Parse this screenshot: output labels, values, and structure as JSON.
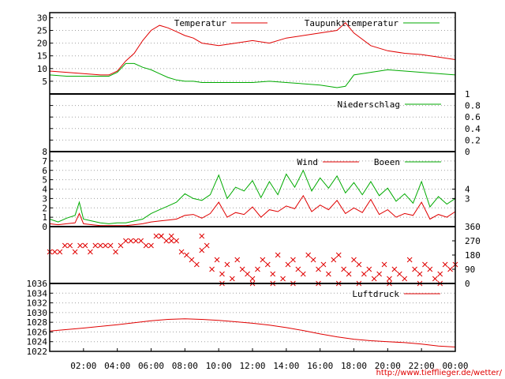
{
  "credit": "http://www.tiefflieger.de/wetter/",
  "colors": {
    "red": "#e00000",
    "green": "#00aa00",
    "grid": "#a0a0a0"
  },
  "x_axis": {
    "ticks": [
      2,
      4,
      6,
      8,
      10,
      12,
      14,
      16,
      18,
      20,
      22,
      24
    ],
    "tick_labels": [
      "02:00",
      "04:00",
      "06:00",
      "08:00",
      "10:00",
      "12:00",
      "14:00",
      "16:00",
      "18:00",
      "20:00",
      "22:00",
      "00:00"
    ],
    "range_hours": [
      0,
      24
    ]
  },
  "chart_data": [
    {
      "type": "line",
      "panel": "temperature",
      "ylim": [
        0,
        32
      ],
      "yticks": [
        5,
        10,
        15,
        20,
        25,
        30
      ],
      "ytick_labels": [
        "5",
        "10",
        "15",
        "20",
        "25",
        "30"
      ],
      "x": [
        0,
        1,
        2,
        3,
        3.5,
        4,
        4.5,
        5,
        5.5,
        6,
        6.5,
        7,
        7.5,
        8,
        8.5,
        9,
        10,
        11,
        12,
        13,
        14,
        15,
        16,
        17,
        17.5,
        18,
        19,
        20,
        21,
        22,
        23,
        24
      ],
      "series": [
        {
          "name": "Temperatur",
          "color": "#e00000",
          "values": [
            9,
            8.5,
            8,
            7.5,
            7.5,
            9,
            13,
            16,
            21,
            25,
            27,
            26,
            24.5,
            23,
            22,
            20,
            19,
            20,
            21,
            20,
            22,
            23,
            24,
            25,
            28,
            24,
            19,
            17,
            16,
            15.5,
            14.5,
            13.5
          ]
        },
        {
          "name": "Taupunkttemperatur",
          "color": "#00aa00",
          "values": [
            7.5,
            7,
            7,
            7,
            7,
            8.5,
            12,
            12,
            10.5,
            9.5,
            8,
            6.5,
            5.5,
            5,
            5,
            4.5,
            4.5,
            4.5,
            4.5,
            5,
            4.5,
            4,
            3.5,
            2.5,
            3,
            7.5,
            8.5,
            9.5,
            9,
            8.5,
            8,
            7.5
          ]
        }
      ]
    },
    {
      "type": "line",
      "panel": "precipitation",
      "ylim": [
        0,
        1
      ],
      "yticks": [
        0,
        0.2,
        0.4,
        0.6,
        0.8,
        1
      ],
      "ytick_labels": [
        "0",
        "0.2",
        "0.4",
        "0.6",
        "0.8",
        "1"
      ],
      "x": [
        0,
        24
      ],
      "series": [
        {
          "name": "Niederschlag",
          "color": "#00aa00",
          "values": [
            0,
            0
          ]
        }
      ]
    },
    {
      "type": "line",
      "panel": "wind",
      "ylim": [
        0,
        8
      ],
      "yticks": [
        0,
        1,
        2,
        3,
        4,
        5,
        6,
        7,
        8
      ],
      "ytick_labels": [
        "0",
        "1",
        "2",
        "3",
        "4",
        "5",
        "6",
        "7",
        "8"
      ],
      "y2ticks": [
        3,
        4
      ],
      "y2tick_labels": [
        "3",
        "4"
      ],
      "x": [
        0,
        0.5,
        1,
        1.5,
        1.75,
        2,
        2.5,
        3,
        3.5,
        4,
        4.5,
        5,
        5.5,
        6,
        6.5,
        7,
        7.5,
        8,
        8.5,
        9,
        9.5,
        10,
        10.5,
        11,
        11.5,
        12,
        12.5,
        13,
        13.5,
        14,
        14.5,
        15,
        15.5,
        16,
        16.5,
        17,
        17.5,
        18,
        18.5,
        19,
        19.5,
        20,
        20.5,
        21,
        21.5,
        22,
        22.5,
        23,
        23.5,
        24
      ],
      "series": [
        {
          "name": "Wind",
          "color": "#e00000",
          "values": [
            0.3,
            0.2,
            0.3,
            0.4,
            1.4,
            0.3,
            0.2,
            0.1,
            0.1,
            0.1,
            0.1,
            0.2,
            0.3,
            0.5,
            0.6,
            0.7,
            0.8,
            1.2,
            1.3,
            0.9,
            1.4,
            2.6,
            1.0,
            1.5,
            1.3,
            2.1,
            1.0,
            1.8,
            1.6,
            2.2,
            1.9,
            3.3,
            1.6,
            2.3,
            1.8,
            2.8,
            1.4,
            2.0,
            1.5,
            2.9,
            1.3,
            1.8,
            1.0,
            1.4,
            1.2,
            2.6,
            0.8,
            1.3,
            1.0,
            1.6
          ]
        },
        {
          "name": "Boeen",
          "color": "#00aa00",
          "values": [
            0.8,
            0.5,
            0.9,
            1.2,
            2.6,
            0.8,
            0.6,
            0.4,
            0.3,
            0.4,
            0.4,
            0.6,
            0.8,
            1.4,
            1.8,
            2.2,
            2.6,
            3.5,
            3.0,
            2.8,
            3.4,
            5.5,
            3.0,
            4.2,
            3.8,
            4.9,
            3.1,
            4.8,
            3.4,
            5.6,
            4.2,
            6.0,
            3.8,
            5.2,
            4.1,
            5.4,
            3.6,
            4.7,
            3.4,
            4.8,
            3.3,
            4.1,
            2.7,
            3.5,
            2.5,
            4.8,
            2.1,
            3.2,
            2.4,
            3.0
          ]
        }
      ]
    },
    {
      "type": "scatter",
      "panel": "wind-direction",
      "ylim": [
        0,
        360
      ],
      "y2ticks": [
        0,
        90,
        180,
        270,
        360
      ],
      "y2tick_labels": [
        "0",
        "90",
        "180",
        "270",
        "360"
      ],
      "series": [
        {
          "name": "",
          "color": "#e00000",
          "marker": "x",
          "x": [
            0,
            0.3,
            0.6,
            0.9,
            1.2,
            1.5,
            1.8,
            2.1,
            2.4,
            2.7,
            3.0,
            3.3,
            3.6,
            3.9,
            4.2,
            4.5,
            4.8,
            5.1,
            5.4,
            5.7,
            6.0,
            6.3,
            6.6,
            6.9,
            7.2,
            7.5,
            7.8,
            8.1,
            8.4,
            8.7,
            9.0,
            9.3,
            9.6,
            9.9,
            10.2,
            10.5,
            10.8,
            11.1,
            11.4,
            11.7,
            12.0,
            12.3,
            12.6,
            12.9,
            13.2,
            13.5,
            13.8,
            14.1,
            14.4,
            14.7,
            15.0,
            15.3,
            15.6,
            15.9,
            16.2,
            16.5,
            16.8,
            17.1,
            17.4,
            17.7,
            18.0,
            18.3,
            18.6,
            18.9,
            19.2,
            19.5,
            19.8,
            20.1,
            20.4,
            20.7,
            21.0,
            21.3,
            21.6,
            21.9,
            22.2,
            22.5,
            22.8,
            23.1,
            23.4,
            23.7,
            24.0,
            6.6,
            7.2,
            9.0,
            10.2,
            12.0,
            13.2,
            14.4,
            15.9,
            17.1,
            18.3,
            20.1,
            21.9,
            23.1
          ],
          "y": [
            200,
            200,
            200,
            240,
            240,
            200,
            240,
            240,
            200,
            240,
            240,
            240,
            240,
            200,
            240,
            270,
            270,
            270,
            270,
            240,
            240,
            300,
            300,
            270,
            300,
            270,
            200,
            180,
            150,
            120,
            210,
            240,
            90,
            150,
            60,
            120,
            30,
            150,
            90,
            60,
            30,
            90,
            150,
            120,
            60,
            180,
            30,
            120,
            150,
            90,
            60,
            180,
            150,
            90,
            120,
            60,
            150,
            180,
            90,
            60,
            150,
            120,
            60,
            90,
            30,
            60,
            120,
            30,
            90,
            60,
            30,
            150,
            90,
            60,
            120,
            90,
            30,
            60,
            120,
            90,
            120,
            300,
            270,
            300,
            0,
            0,
            0,
            0,
            0,
            0,
            0,
            0,
            0,
            0
          ]
        }
      ]
    },
    {
      "type": "line",
      "panel": "pressure",
      "ylim": [
        1022,
        1036
      ],
      "yticks": [
        1022,
        1024,
        1026,
        1028,
        1030,
        1032,
        1034,
        1036
      ],
      "ytick_labels": [
        "1022",
        "1024",
        "1026",
        "1028",
        "1030",
        "1032",
        "1034",
        "1036"
      ],
      "x": [
        0,
        2,
        4,
        6,
        7,
        8,
        9,
        10,
        11,
        12,
        13,
        14,
        15,
        16,
        17,
        18,
        19,
        20,
        21,
        22,
        23,
        24
      ],
      "series": [
        {
          "name": "Luftdruck",
          "color": "#e00000",
          "values": [
            1026.2,
            1026.8,
            1027.5,
            1028.3,
            1028.6,
            1028.7,
            1028.6,
            1028.4,
            1028.1,
            1027.8,
            1027.4,
            1026.9,
            1026.3,
            1025.6,
            1025.0,
            1024.5,
            1024.2,
            1024.0,
            1023.8,
            1023.5,
            1023.1,
            1022.9
          ]
        }
      ]
    }
  ]
}
